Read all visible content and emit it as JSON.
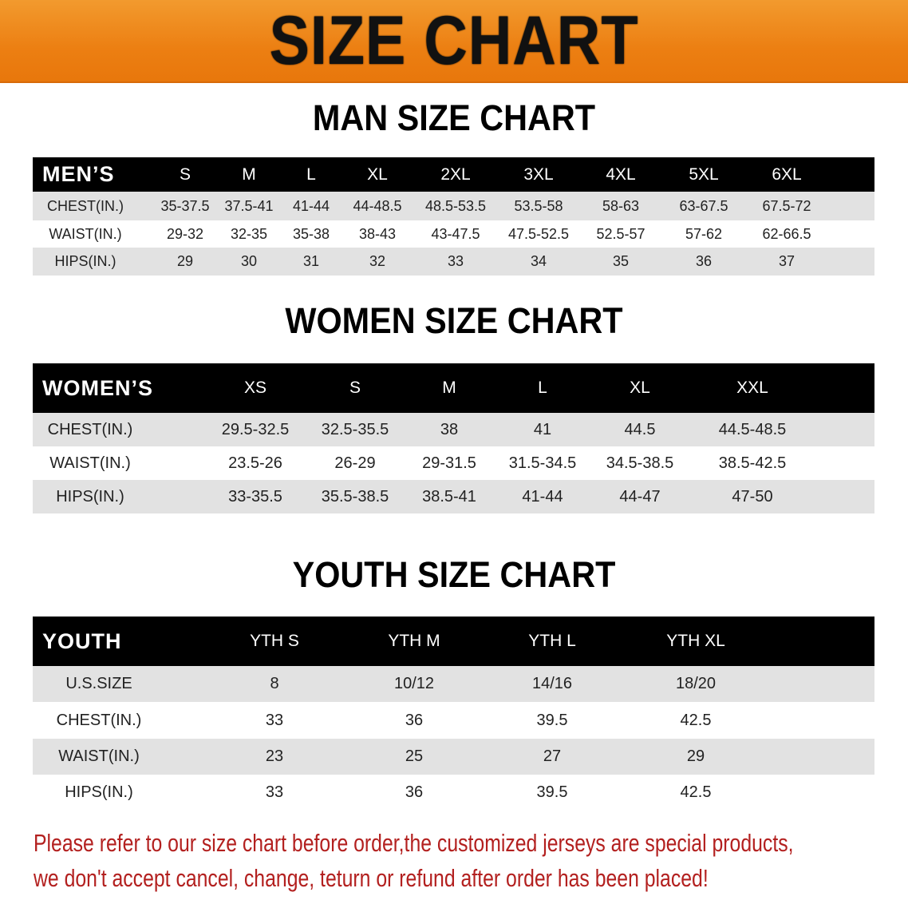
{
  "banner": {
    "title": "SIZE CHART",
    "color": "#ec7f12"
  },
  "men": {
    "title": "MAN SIZE CHART",
    "header": [
      "MEN’S",
      "S",
      "M",
      "L",
      "XL",
      "2XL",
      "3XL",
      "4XL",
      "5XL",
      "6XL"
    ],
    "rows": [
      [
        "CHEST(IN.)",
        "35-37.5",
        "37.5-41",
        "41-44",
        "44-48.5",
        "48.5-53.5",
        "53.5-58",
        "58-63",
        "63-67.5",
        "67.5-72"
      ],
      [
        "WAIST(IN.)",
        "29-32",
        "32-35",
        "35-38",
        "38-43",
        "43-47.5",
        "47.5-52.5",
        "52.5-57",
        "57-62",
        "62-66.5"
      ],
      [
        "HIPS(IN.)",
        "29",
        "30",
        "31",
        "32",
        "33",
        "34",
        "35",
        "36",
        "37"
      ]
    ]
  },
  "women": {
    "title": "WOMEN SIZE CHART",
    "header": [
      "WOMEN’S",
      "XS",
      "S",
      "M",
      "L",
      "XL",
      "XXL"
    ],
    "rows": [
      [
        "CHEST(IN.)",
        "29.5-32.5",
        "32.5-35.5",
        "38",
        "41",
        "44.5",
        "44.5-48.5"
      ],
      [
        "WAIST(IN.)",
        "23.5-26",
        "26-29",
        "29-31.5",
        "31.5-34.5",
        "34.5-38.5",
        "38.5-42.5"
      ],
      [
        "HIPS(IN.)",
        "33-35.5",
        "35.5-38.5",
        "38.5-41",
        "41-44",
        "44-47",
        "47-50"
      ]
    ]
  },
  "youth": {
    "title": "YOUTH SIZE CHART",
    "header": [
      "YOUTH",
      "YTH S",
      "YTH M",
      "YTH L",
      "YTH XL"
    ],
    "rows": [
      [
        "U.S.SIZE",
        "8",
        "10/12",
        "14/16",
        "18/20"
      ],
      [
        "CHEST(IN.)",
        "33",
        "36",
        "39.5",
        "42.5"
      ],
      [
        "WAIST(IN.)",
        "23",
        "25",
        "27",
        "29"
      ],
      [
        "HIPS(IN.)",
        "33",
        "36",
        "39.5",
        "42.5"
      ]
    ]
  },
  "notice": {
    "line1": "Please refer to our size chart before order,the customized jerseys are special products,",
    "line2": "we don't accept cancel, change, teturn or refund after order has been placed!",
    "color": "#b3201f"
  }
}
